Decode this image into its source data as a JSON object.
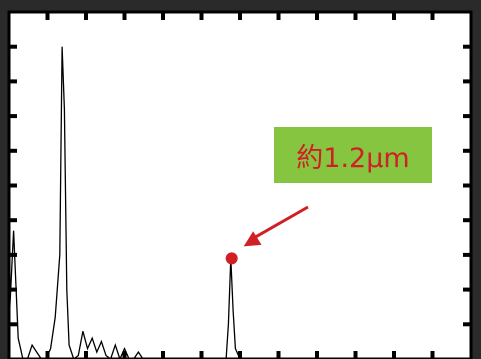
{
  "chart_data": {
    "type": "line",
    "title": "",
    "xlabel": "",
    "ylabel": "",
    "grid": false,
    "xlim": [
      0,
      100
    ],
    "ylim": [
      0,
      100
    ],
    "series": [
      {
        "values_x": [
          0,
          1,
          2,
          3,
          4,
          5,
          6,
          7,
          8,
          9,
          10,
          11,
          11.5,
          12,
          12.5,
          13,
          14,
          15,
          16,
          17,
          18,
          19,
          20,
          21,
          22,
          23,
          24,
          25,
          26,
          27,
          28,
          29,
          30,
          46,
          47,
          47.5,
          48,
          48.5,
          49,
          50,
          100
        ],
        "values_y": [
          10,
          37,
          6,
          0,
          0,
          4,
          2,
          0,
          0,
          3,
          12,
          30,
          90,
          72,
          20,
          4,
          0,
          1,
          8,
          3,
          6,
          2,
          5,
          1,
          0,
          4,
          0,
          3,
          0,
          0,
          2,
          0,
          0,
          0,
          0,
          10,
          29,
          14,
          3,
          0,
          0
        ]
      }
    ],
    "highlight": {
      "x": 48.2,
      "y": 29,
      "color": "#d11f26",
      "label": "約1.2μm",
      "label_bg": "#86c540"
    }
  }
}
